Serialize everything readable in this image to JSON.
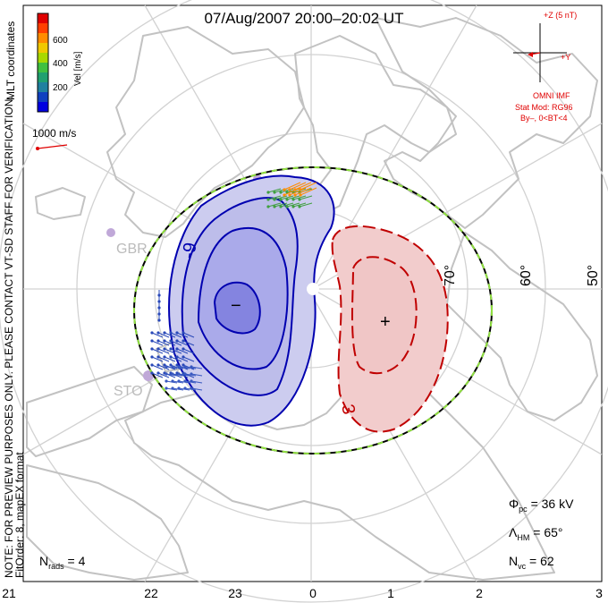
{
  "title": "07/Aug/2007 20:00–20:02 UT",
  "coordinates_label": "MLT coordinates",
  "preview_note": "NOTE: FOR PREVIEW PURPOSES ONLY. PLEASE CONTACT VT-SD STAFF FOR VERIFICATION.",
  "fit_note": "FitOrder: 8, mapEX format",
  "velocity_scale": {
    "unit_label": "Vel [m/s]",
    "ticks": [
      "600",
      "400",
      "200"
    ],
    "colors": [
      "#e00000",
      "#ff4000",
      "#ff8c00",
      "#f0c800",
      "#a8d800",
      "#40c040",
      "#20a070",
      "#2080a0",
      "#1040c0",
      "#0000e0"
    ]
  },
  "reference_vector": {
    "label": "1000 m/s"
  },
  "imf": {
    "z_label": "+Z (5 nT)",
    "y_label": "+Y",
    "source": "OMNI IMF",
    "stat_model": "Stat Mod: RG96",
    "conditions": "By–, 0<BT<4"
  },
  "latitude_labels": [
    "70°",
    "60°",
    "50°"
  ],
  "mlt_ticks": [
    "21",
    "22",
    "23",
    "0",
    "1",
    "2",
    "3"
  ],
  "stations": [
    "GBR",
    "STO"
  ],
  "contours": {
    "negative_label": "-9",
    "positive_label": "3",
    "min_marker": "−",
    "max_marker": "+"
  },
  "stats": {
    "phi_pc": {
      "symbol": "Φ",
      "sub": "pc",
      "value": " = 36 kV"
    },
    "lambda_hm": {
      "symbol": "Λ",
      "sub": "HM",
      "value": " = 65°"
    },
    "n_vc": {
      "symbol": "N",
      "sub": "vc",
      "value": " = 62"
    },
    "n_rads": {
      "symbol": "N",
      "sub": "rads",
      "value": " = 4"
    }
  },
  "colors": {
    "negative_fill": "#ccccef",
    "negative_line": "#0000b0",
    "positive_fill": "#f2cccc",
    "positive_line": "#c00000",
    "grid": "#d2d2d2",
    "coast": "#c2c2c2",
    "hmb": "#90e040"
  }
}
